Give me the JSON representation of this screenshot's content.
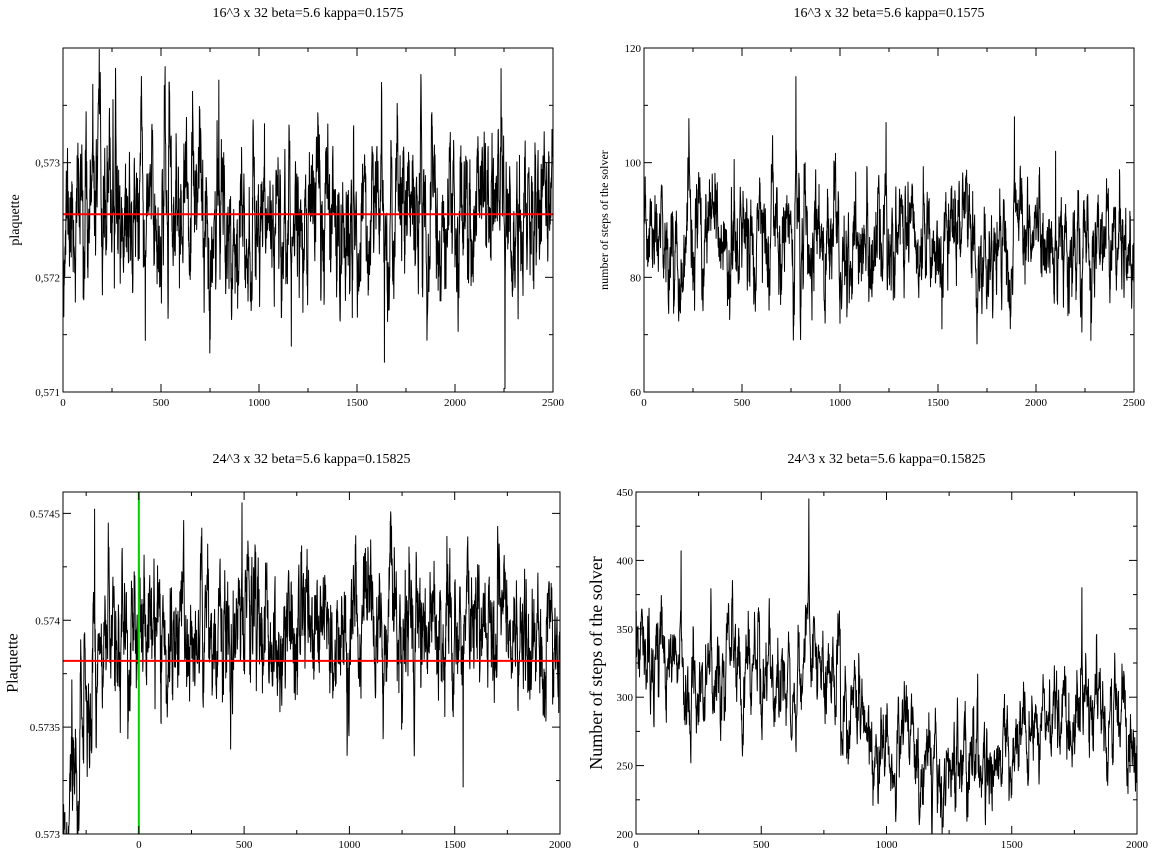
{
  "chart_data": [
    {
      "type": "line",
      "title": "16^3 x 32 beta=5.6 kappa=0.1575",
      "xlabel": "",
      "ylabel": "plaquette",
      "xlim": [
        0,
        2500
      ],
      "ylim": [
        0.571,
        0.574
      ],
      "xticks": [
        0,
        500,
        1000,
        1500,
        2000,
        2500
      ],
      "xtick_labels": [
        "0",
        "500",
        "1000",
        "1500",
        "2000",
        "2500"
      ],
      "yticks": [
        0.571,
        0.572,
        0.573
      ],
      "ytick_labels": [
        "0,571",
        "0,572",
        "0,573"
      ],
      "grid": false,
      "series": [
        {
          "color": "#000000",
          "n": 2500,
          "mean": 0.57255,
          "sigma": 0.00038,
          "drift": [],
          "peaks": [
            [
              255,
              0.57355
            ],
            [
              795,
              0.57372
            ],
            [
              2255,
              0.57103
            ],
            [
              2235,
              0.57382
            ],
            [
              1640,
              0.57126
            ],
            [
              1165,
              0.5714
            ],
            [
              420,
              0.57145
            ]
          ],
          "seed": 11
        },
        {
          "color": "#ff0000",
          "kind": "hline",
          "y": 0.57255
        }
      ]
    },
    {
      "type": "line",
      "title": "16^3 x 32  beta=5.6  kappa=0.1575",
      "xlabel": "",
      "ylabel": "number of steps of the solver",
      "xlim": [
        0,
        2500
      ],
      "ylim": [
        60,
        120
      ],
      "xticks": [
        0,
        500,
        1000,
        1500,
        2000,
        2500
      ],
      "xtick_labels": [
        "0",
        "500",
        "1000",
        "1500",
        "2000",
        "2500"
      ],
      "yticks": [
        60,
        80,
        100,
        120
      ],
      "ytick_labels": [
        "60",
        "80",
        "100",
        "120"
      ],
      "grid": false,
      "series": [
        {
          "color": "#000000",
          "n": 2500,
          "mean": 85.5,
          "sigma": 5.2,
          "drift": [],
          "peaks": [
            [
              775,
              115
            ],
            [
              1235,
              107
            ],
            [
              1890,
              108
            ],
            [
              2100,
              102
            ],
            [
              2280,
              69
            ],
            [
              1000,
              72
            ],
            [
              1520,
              71
            ]
          ],
          "seed": 23
        }
      ]
    },
    {
      "type": "line",
      "title": "24^3 x 32  beta=5.6  kappa=0.15825",
      "xlabel": "",
      "ylabel": "Plaquette",
      "xlim": [
        -360,
        2000
      ],
      "ylim": [
        0.573,
        0.5746
      ],
      "xticks": [
        0,
        500,
        1000,
        1500,
        2000
      ],
      "xtick_labels": [
        "0",
        "500",
        "1000",
        "1500",
        "2000"
      ],
      "yticks": [
        0.573,
        0.5735,
        0.574,
        0.5745
      ],
      "ytick_labels": [
        "0.573",
        "0.5735",
        "0.574",
        "0.5745"
      ],
      "grid": false,
      "series": [
        {
          "color": "#000000",
          "n": 2360,
          "x0": -360,
          "mean": 0.57396,
          "sigma": 0.00019,
          "drift": [
            [
              -360,
              0.573
            ],
            [
              -320,
              0.5733
            ],
            [
              -260,
              0.5736
            ],
            [
              -180,
              0.5739
            ],
            [
              -100,
              0.57395
            ]
          ],
          "peaks": [
            [
              -210,
              0.57452
            ],
            [
              490,
              0.57455
            ],
            [
              1540,
              0.57322
            ],
            [
              -330,
              0.5731
            ]
          ],
          "seed": 37
        },
        {
          "color": "#ff0000",
          "kind": "hline",
          "y": 0.57381
        },
        {
          "color": "#00d000",
          "kind": "vline",
          "x": 0
        }
      ]
    },
    {
      "type": "line",
      "title": "24^3 x 32 beta=5.6 kappa=0.15825",
      "xlabel": "",
      "ylabel": "Number of steps of the solver",
      "xlim": [
        0,
        2000
      ],
      "ylim": [
        200,
        450
      ],
      "xticks": [
        0,
        500,
        1000,
        1500,
        2000
      ],
      "xtick_labels": [
        "0",
        "500",
        "1000",
        "1500",
        "2000"
      ],
      "yticks": [
        200,
        250,
        300,
        350,
        400,
        450
      ],
      "ytick_labels": [
        "200",
        "250",
        "300",
        "350",
        "400",
        "450"
      ],
      "grid": false,
      "series": [
        {
          "color": "#000000",
          "n": 2000,
          "mean": 300,
          "sigma": 21,
          "drift": [
            [
              0,
              325
            ],
            [
              250,
              318
            ],
            [
              500,
              312
            ],
            [
              700,
              318
            ],
            [
              900,
              290
            ],
            [
              1000,
              270
            ],
            [
              1200,
              262
            ],
            [
              1400,
              252
            ],
            [
              1550,
              270
            ],
            [
              1800,
              290
            ],
            [
              2000,
              282
            ]
          ],
          "peaks": [
            [
              690,
              445
            ],
            [
              180,
              407
            ],
            [
              1780,
              380
            ],
            [
              1410,
              222
            ]
          ],
          "seed": 53
        }
      ]
    }
  ]
}
